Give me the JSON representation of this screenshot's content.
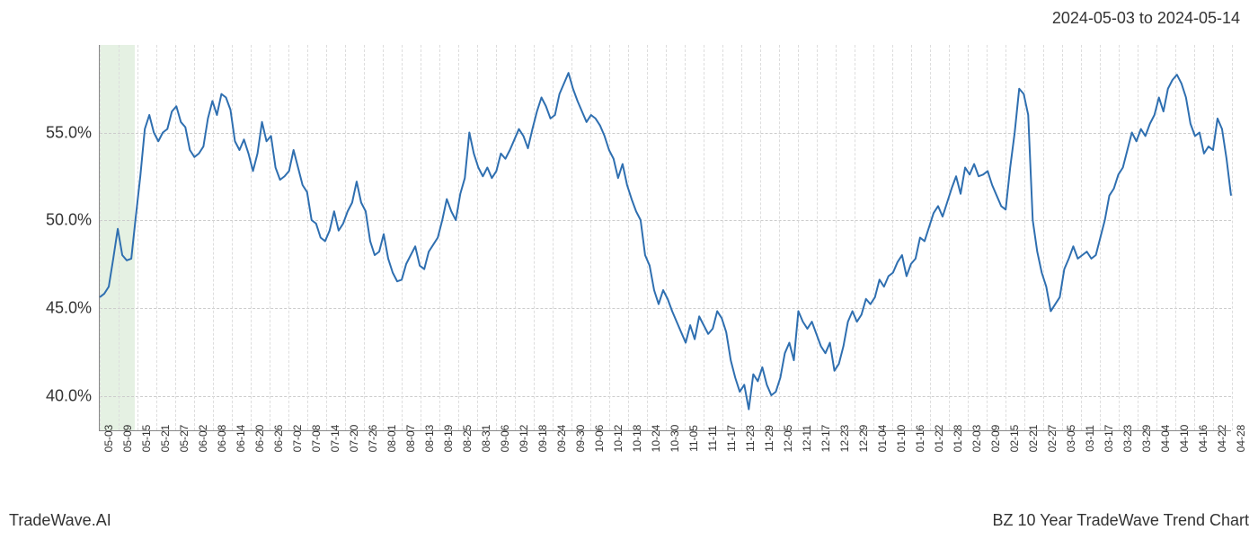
{
  "header": {
    "date_range": "2024-05-03 to 2024-05-14"
  },
  "footer": {
    "left": "TradeWave.AI",
    "right": "BZ 10 Year TradeWave Trend Chart"
  },
  "chart": {
    "type": "line",
    "background_color": "#ffffff",
    "grid_color": "#cccccc",
    "grid_v_color": "#dddddd",
    "axis_color": "#888888",
    "line_color": "#2f6fb0",
    "line_width": 2,
    "highlight_color": "#d4e8d0",
    "highlight_opacity": 0.6,
    "highlight_range": [
      "05-03",
      "05-14"
    ],
    "ylim": [
      38,
      60
    ],
    "yticks": [
      {
        "value": 40,
        "label": "40.0%"
      },
      {
        "value": 45,
        "label": "45.0%"
      },
      {
        "value": 50,
        "label": "50.0%"
      },
      {
        "value": 55,
        "label": "55.0%"
      }
    ],
    "xticks": [
      "05-03",
      "05-09",
      "05-15",
      "05-21",
      "05-27",
      "06-02",
      "06-08",
      "06-14",
      "06-20",
      "06-26",
      "07-02",
      "07-08",
      "07-14",
      "07-20",
      "07-26",
      "08-01",
      "08-07",
      "08-13",
      "08-19",
      "08-25",
      "08-31",
      "09-06",
      "09-12",
      "09-18",
      "09-24",
      "09-30",
      "10-06",
      "10-12",
      "10-18",
      "10-24",
      "10-30",
      "11-05",
      "11-11",
      "11-17",
      "11-23",
      "11-29",
      "12-05",
      "12-11",
      "12-17",
      "12-23",
      "12-29",
      "01-04",
      "01-10",
      "01-16",
      "01-22",
      "01-28",
      "02-03",
      "02-09",
      "02-15",
      "02-21",
      "02-27",
      "03-05",
      "03-11",
      "03-17",
      "03-23",
      "03-29",
      "04-04",
      "04-10",
      "04-16",
      "04-22",
      "04-28"
    ],
    "tick_fontsize": 12,
    "ylabel_fontsize": 18,
    "values": [
      45.6,
      45.8,
      46.2,
      47.8,
      49.5,
      48.0,
      47.7,
      47.8,
      50.2,
      52.5,
      55.2,
      56.0,
      55.0,
      54.5,
      55.0,
      55.2,
      56.2,
      56.5,
      55.6,
      55.3,
      54.0,
      53.6,
      53.8,
      54.2,
      55.8,
      56.8,
      56.0,
      57.2,
      57.0,
      56.3,
      54.5,
      54.0,
      54.6,
      53.8,
      52.8,
      53.8,
      55.6,
      54.5,
      54.8,
      53.0,
      52.3,
      52.5,
      52.8,
      54.0,
      53.0,
      52.0,
      51.6,
      50.0,
      49.8,
      49.0,
      48.8,
      49.4,
      50.5,
      49.4,
      49.8,
      50.5,
      51.0,
      52.2,
      51.0,
      50.5,
      48.8,
      48.0,
      48.2,
      49.2,
      47.8,
      47.0,
      46.5,
      46.6,
      47.5,
      48.0,
      48.5,
      47.4,
      47.2,
      48.2,
      48.6,
      49.0,
      50.0,
      51.2,
      50.5,
      50.0,
      51.5,
      52.4,
      55.0,
      53.8,
      53.0,
      52.5,
      53.0,
      52.4,
      52.8,
      53.8,
      53.5,
      54.0,
      54.6,
      55.2,
      54.8,
      54.1,
      55.2,
      56.2,
      57.0,
      56.5,
      55.8,
      56.0,
      57.2,
      57.8,
      58.4,
      57.5,
      56.8,
      56.2,
      55.6,
      56.0,
      55.8,
      55.4,
      54.8,
      54.0,
      53.5,
      52.4,
      53.2,
      52.0,
      51.2,
      50.5,
      50.0,
      48.0,
      47.4,
      46.0,
      45.2,
      46.0,
      45.5,
      44.8,
      44.2,
      43.6,
      43.0,
      44.0,
      43.2,
      44.5,
      44.0,
      43.5,
      43.8,
      44.8,
      44.4,
      43.6,
      42.0,
      41.0,
      40.2,
      40.6,
      39.2,
      41.2,
      40.8,
      41.6,
      40.6,
      40.0,
      40.2,
      41.0,
      42.4,
      43.0,
      42.0,
      44.8,
      44.2,
      43.8,
      44.2,
      43.5,
      42.8,
      42.4,
      43.0,
      41.4,
      41.8,
      42.8,
      44.2,
      44.8,
      44.2,
      44.6,
      45.5,
      45.2,
      45.6,
      46.6,
      46.2,
      46.8,
      47.0,
      47.6,
      48.0,
      46.8,
      47.5,
      47.8,
      49.0,
      48.8,
      49.6,
      50.4,
      50.8,
      50.2,
      51.0,
      51.8,
      52.5,
      51.5,
      53.0,
      52.6,
      53.2,
      52.5,
      52.6,
      52.8,
      52.0,
      51.4,
      50.8,
      50.6,
      53.0,
      55.0,
      57.5,
      57.2,
      56.0,
      50.0,
      48.2,
      47.0,
      46.2,
      44.8,
      45.2,
      45.6,
      47.2,
      47.8,
      48.5,
      47.8,
      48.0,
      48.2,
      47.8,
      48.0,
      49.0,
      50.0,
      51.4,
      51.8,
      52.6,
      53.0,
      54.0,
      55.0,
      54.5,
      55.2,
      54.8,
      55.5,
      56.0,
      57.0,
      56.2,
      57.5,
      58.0,
      58.3,
      57.8,
      57.0,
      55.5,
      54.8,
      55.0,
      53.8,
      54.2,
      54.0,
      55.8,
      55.2,
      53.5,
      51.4
    ]
  }
}
